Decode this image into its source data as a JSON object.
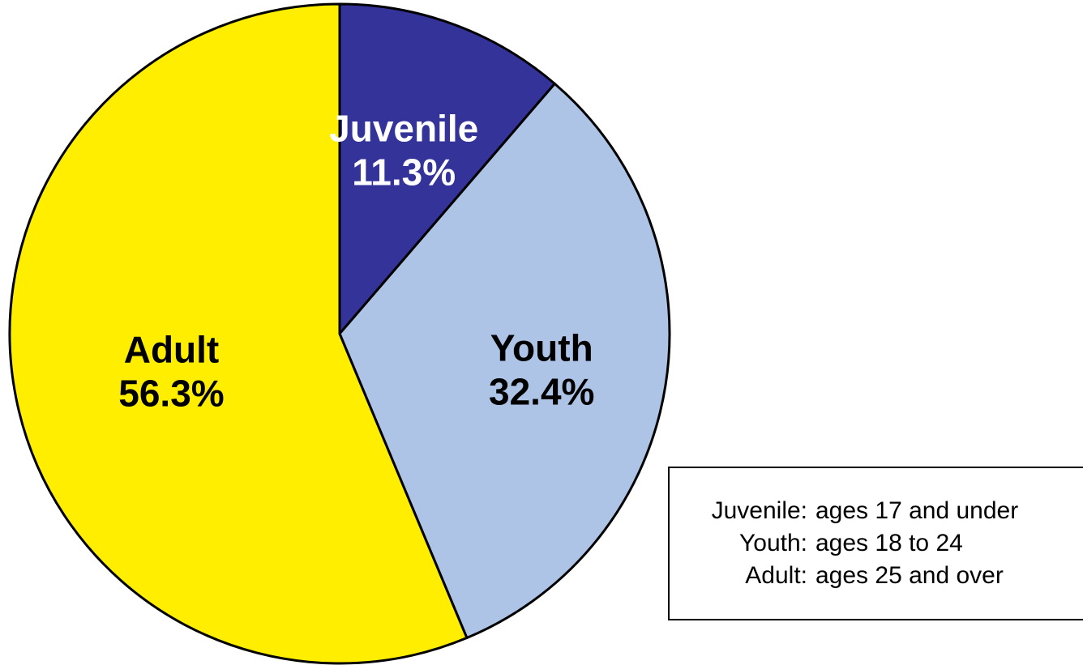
{
  "chart_data": {
    "type": "pie",
    "start_angle": "12 o'clock",
    "direction": "clockwise",
    "slices": [
      {
        "label": "Juvenile",
        "value": 11.3,
        "value_label": "11.3%",
        "color": "#333399",
        "text_color": "#ffffff"
      },
      {
        "label": "Youth",
        "value": 32.4,
        "value_label": "32.4%",
        "color": "#adc4e6",
        "text_color": "#000000"
      },
      {
        "label": "Adult",
        "value": 56.3,
        "value_label": "56.3%",
        "color": "#ffee00",
        "text_color": "#000000"
      }
    ],
    "legend_placement": "bottom-right",
    "legend": [
      {
        "term": "Juvenile:",
        "definition": "ages 17 and under"
      },
      {
        "term": "Youth:",
        "definition": "ages 18 to 24"
      },
      {
        "term": "Adult:",
        "definition": "ages 25 and over"
      }
    ]
  }
}
